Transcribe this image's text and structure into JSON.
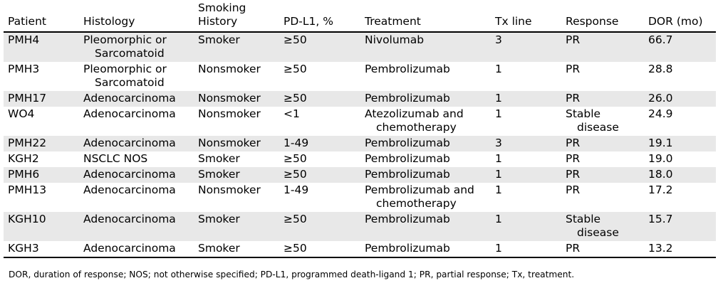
{
  "table": {
    "headers": [
      "Patient",
      "Histology",
      "Smoking History",
      "PD-L1, %",
      "Treatment",
      "Tx line",
      "Response",
      "DOR (mo)"
    ],
    "header_lines": [
      [
        "Patient"
      ],
      [
        "Histology"
      ],
      [
        "Smoking",
        "History"
      ],
      [
        "PD-L1, %"
      ],
      [
        "Treatment"
      ],
      [
        "Tx line"
      ],
      [
        "Response"
      ],
      [
        "DOR (mo)"
      ]
    ],
    "rows": [
      [
        "PMH4",
        "Pleomorphic or Sarcomatoid",
        "Smoker",
        "≥50",
        "Nivolumab",
        "3",
        "PR",
        "66.7"
      ],
      [
        "PMH3",
        "Pleomorphic or Sarcomatoid",
        "Nonsmoker",
        "≥50",
        "Pembrolizumab",
        "1",
        "PR",
        "28.8"
      ],
      [
        "PMH17",
        "Adenocarcinoma",
        "Nonsmoker",
        "≥50",
        "Pembrolizumab",
        "1",
        "PR",
        "26.0"
      ],
      [
        "WO4",
        "Adenocarcinoma",
        "Nonsmoker",
        "<1",
        "Atezolizumab and chemotherapy",
        "1",
        "Stable disease",
        "24.9"
      ],
      [
        "PMH22",
        "Adenocarcinoma",
        "Nonsmoker",
        "1-49",
        "Pembrolizumab",
        "3",
        "PR",
        "19.1"
      ],
      [
        "KGH2",
        "NSCLC NOS",
        "Smoker",
        "≥50",
        "Pembrolizumab",
        "1",
        "PR",
        "19.0"
      ],
      [
        "PMH6",
        "Adenocarcinoma",
        "Smoker",
        "≥50",
        "Pembrolizumab",
        "1",
        "PR",
        "18.0"
      ],
      [
        "PMH13",
        "Adenocarcinoma",
        "Nonsmoker",
        "1-49",
        "Pembrolizumab and chemotherapy",
        "1",
        "PR",
        "17.2"
      ],
      [
        "KGH10",
        "Adenocarcinoma",
        "Smoker",
        "≥50",
        "Pembrolizumab",
        "1",
        "Stable disease",
        "15.7"
      ],
      [
        "KGH3",
        "Adenocarcinoma",
        "Smoker",
        "≥50",
        "Pembrolizumab",
        "1",
        "PR",
        "13.2"
      ]
    ],
    "cell_lines": [
      [
        [
          "PMH4"
        ],
        [
          "Pleomorphic or",
          "Sarcomatoid"
        ],
        [
          "Smoker"
        ],
        [
          "≥50"
        ],
        [
          "Nivolumab"
        ],
        [
          "3"
        ],
        [
          "PR"
        ],
        [
          "66.7"
        ]
      ],
      [
        [
          "PMH3"
        ],
        [
          "Pleomorphic or",
          "Sarcomatoid"
        ],
        [
          "Nonsmoker"
        ],
        [
          "≥50"
        ],
        [
          "Pembrolizumab"
        ],
        [
          "1"
        ],
        [
          "PR"
        ],
        [
          "28.8"
        ]
      ],
      [
        [
          "PMH17"
        ],
        [
          "Adenocarcinoma"
        ],
        [
          "Nonsmoker"
        ],
        [
          "≥50"
        ],
        [
          "Pembrolizumab"
        ],
        [
          "1"
        ],
        [
          "PR"
        ],
        [
          "26.0"
        ]
      ],
      [
        [
          "WO4"
        ],
        [
          "Adenocarcinoma"
        ],
        [
          "Nonsmoker"
        ],
        [
          "<1"
        ],
        [
          "Atezolizumab and",
          "chemotherapy"
        ],
        [
          "1"
        ],
        [
          "Stable",
          "disease"
        ],
        [
          "24.9"
        ]
      ],
      [
        [
          "PMH22"
        ],
        [
          "Adenocarcinoma"
        ],
        [
          "Nonsmoker"
        ],
        [
          "1-49"
        ],
        [
          "Pembrolizumab"
        ],
        [
          "3"
        ],
        [
          "PR"
        ],
        [
          "19.1"
        ]
      ],
      [
        [
          "KGH2"
        ],
        [
          "NSCLC NOS"
        ],
        [
          "Smoker"
        ],
        [
          "≥50"
        ],
        [
          "Pembrolizumab"
        ],
        [
          "1"
        ],
        [
          "PR"
        ],
        [
          "19.0"
        ]
      ],
      [
        [
          "PMH6"
        ],
        [
          "Adenocarcinoma"
        ],
        [
          "Smoker"
        ],
        [
          "≥50"
        ],
        [
          "Pembrolizumab"
        ],
        [
          "1"
        ],
        [
          "PR"
        ],
        [
          "18.0"
        ]
      ],
      [
        [
          "PMH13"
        ],
        [
          "Adenocarcinoma"
        ],
        [
          "Nonsmoker"
        ],
        [
          "1-49"
        ],
        [
          "Pembrolizumab and",
          "chemotherapy"
        ],
        [
          "1"
        ],
        [
          "PR"
        ],
        [
          "17.2"
        ]
      ],
      [
        [
          "KGH10"
        ],
        [
          "Adenocarcinoma"
        ],
        [
          "Smoker"
        ],
        [
          "≥50"
        ],
        [
          "Pembrolizumab"
        ],
        [
          "1"
        ],
        [
          "Stable",
          "disease"
        ],
        [
          "15.7"
        ]
      ],
      [
        [
          "KGH3"
        ],
        [
          "Adenocarcinoma"
        ],
        [
          "Smoker"
        ],
        [
          "≥50"
        ],
        [
          "Pembrolizumab"
        ],
        [
          "1"
        ],
        [
          "PR"
        ],
        [
          "13.2"
        ]
      ]
    ]
  },
  "footnote": "DOR, duration of response; NOS; not otherwise specified; PD-L1, programmed death-ligand 1; PR, partial response; Tx, treatment."
}
